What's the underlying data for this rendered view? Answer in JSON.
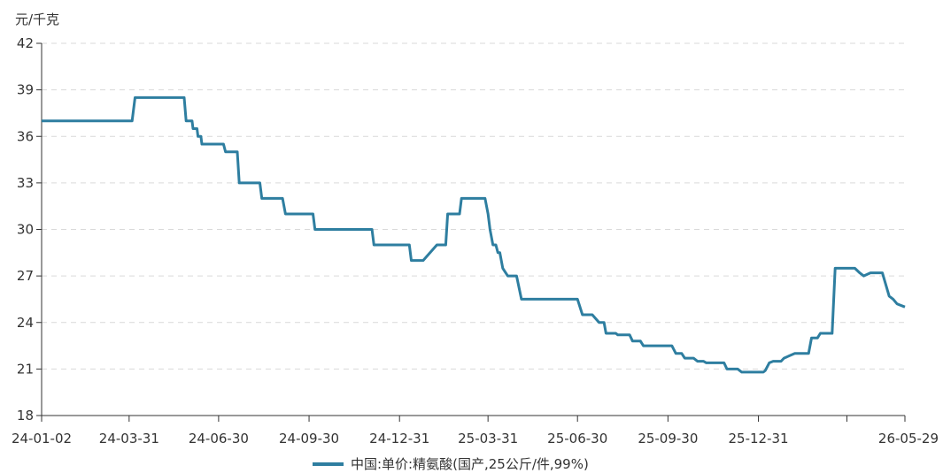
{
  "chart_data": {
    "type": "line",
    "y_unit": "元/千克",
    "ylim": [
      18,
      42
    ],
    "y_ticks": [
      "18",
      "21",
      "24",
      "27",
      "30",
      "33",
      "36",
      "39",
      "42"
    ],
    "x_range": [
      "2024-01-02",
      "2026-05-29"
    ],
    "x_ticks": [
      {
        "date": "2024-01-02",
        "label": "24-01-02"
      },
      {
        "date": "2024-03-31",
        "label": "24-03-31"
      },
      {
        "date": "2024-06-30",
        "label": "24-06-30"
      },
      {
        "date": "2024-09-30",
        "label": "24-09-30"
      },
      {
        "date": "2024-12-31",
        "label": "24-12-31"
      },
      {
        "date": "2025-03-31",
        "label": "25-03-31"
      },
      {
        "date": "2025-06-30",
        "label": "25-06-30"
      },
      {
        "date": "2025-09-30",
        "label": "25-09-30"
      },
      {
        "date": "2025-12-31",
        "label": "25-12-31"
      },
      {
        "date": "2026-03-31",
        "label": ""
      },
      {
        "date": "2026-05-29",
        "label": "26-05-29"
      }
    ],
    "grid": "horizontal-dashed",
    "legend_position": "bottom-center",
    "series": [
      {
        "name": "中国:单价:精氨酸(国产,25公斤/件,99%)",
        "color": "#2e7ea0",
        "points": [
          [
            "2024-01-02",
            37.0
          ],
          [
            "2024-04-03",
            37.0
          ],
          [
            "2024-04-06",
            38.5
          ],
          [
            "2024-05-26",
            38.5
          ],
          [
            "2024-05-28",
            37.0
          ],
          [
            "2024-06-03",
            37.0
          ],
          [
            "2024-06-04",
            36.5
          ],
          [
            "2024-06-08",
            36.5
          ],
          [
            "2024-06-09",
            36.0
          ],
          [
            "2024-06-12",
            36.0
          ],
          [
            "2024-06-13",
            35.5
          ],
          [
            "2024-07-05",
            35.5
          ],
          [
            "2024-07-07",
            35.0
          ],
          [
            "2024-07-19",
            35.0
          ],
          [
            "2024-07-21",
            33.0
          ],
          [
            "2024-08-11",
            33.0
          ],
          [
            "2024-08-13",
            32.0
          ],
          [
            "2024-09-03",
            32.0
          ],
          [
            "2024-09-06",
            31.0
          ],
          [
            "2024-10-04",
            31.0
          ],
          [
            "2024-10-06",
            30.0
          ],
          [
            "2024-12-03",
            30.0
          ],
          [
            "2024-12-05",
            29.0
          ],
          [
            "2025-01-10",
            29.0
          ],
          [
            "2025-01-12",
            28.0
          ],
          [
            "2025-01-24",
            28.0
          ],
          [
            "2025-02-07",
            29.0
          ],
          [
            "2025-02-16",
            29.0
          ],
          [
            "2025-02-18",
            31.0
          ],
          [
            "2025-03-02",
            31.0
          ],
          [
            "2025-03-04",
            32.0
          ],
          [
            "2025-03-28",
            32.0
          ],
          [
            "2025-03-31",
            31.0
          ],
          [
            "2025-04-02",
            30.0
          ],
          [
            "2025-04-05",
            29.0
          ],
          [
            "2025-04-08",
            29.0
          ],
          [
            "2025-04-10",
            28.5
          ],
          [
            "2025-04-12",
            28.5
          ],
          [
            "2025-04-15",
            27.5
          ],
          [
            "2025-04-20",
            27.0
          ],
          [
            "2025-04-29",
            27.0
          ],
          [
            "2025-05-04",
            25.5
          ],
          [
            "2025-06-30",
            25.5
          ],
          [
            "2025-07-05",
            24.5
          ],
          [
            "2025-07-15",
            24.5
          ],
          [
            "2025-07-22",
            24.0
          ],
          [
            "2025-07-27",
            24.0
          ],
          [
            "2025-07-29",
            23.3
          ],
          [
            "2025-08-08",
            23.3
          ],
          [
            "2025-08-10",
            23.2
          ],
          [
            "2025-08-22",
            23.2
          ],
          [
            "2025-08-25",
            22.8
          ],
          [
            "2025-09-02",
            22.8
          ],
          [
            "2025-09-05",
            22.5
          ],
          [
            "2025-10-04",
            22.5
          ],
          [
            "2025-10-08",
            22.0
          ],
          [
            "2025-10-14",
            22.0
          ],
          [
            "2025-10-17",
            21.7
          ],
          [
            "2025-10-26",
            21.7
          ],
          [
            "2025-10-30",
            21.5
          ],
          [
            "2025-11-05",
            21.5
          ],
          [
            "2025-11-08",
            21.4
          ],
          [
            "2025-11-26",
            21.4
          ],
          [
            "2025-11-29",
            21.0
          ],
          [
            "2025-12-10",
            21.0
          ],
          [
            "2025-12-14",
            20.8
          ],
          [
            "2025-12-25",
            20.8
          ],
          [
            "2025-12-29",
            20.8
          ],
          [
            "2026-01-05",
            20.8
          ],
          [
            "2026-01-07",
            20.9
          ],
          [
            "2026-01-11",
            21.4
          ],
          [
            "2026-01-15",
            21.5
          ],
          [
            "2026-01-23",
            21.5
          ],
          [
            "2026-01-26",
            21.7
          ],
          [
            "2026-02-06",
            22.0
          ],
          [
            "2026-02-20",
            22.0
          ],
          [
            "2026-02-23",
            23.0
          ],
          [
            "2026-03-01",
            23.0
          ],
          [
            "2026-03-04",
            23.3
          ],
          [
            "2026-03-16",
            23.3
          ],
          [
            "2026-03-19",
            27.5
          ],
          [
            "2026-04-08",
            27.5
          ],
          [
            "2026-04-13",
            27.2
          ],
          [
            "2026-04-17",
            27.0
          ],
          [
            "2026-04-24",
            27.2
          ],
          [
            "2026-05-06",
            27.2
          ],
          [
            "2026-05-13",
            25.7
          ],
          [
            "2026-05-17",
            25.5
          ],
          [
            "2026-05-21",
            25.2
          ],
          [
            "2026-05-29",
            25.0
          ]
        ]
      }
    ]
  }
}
